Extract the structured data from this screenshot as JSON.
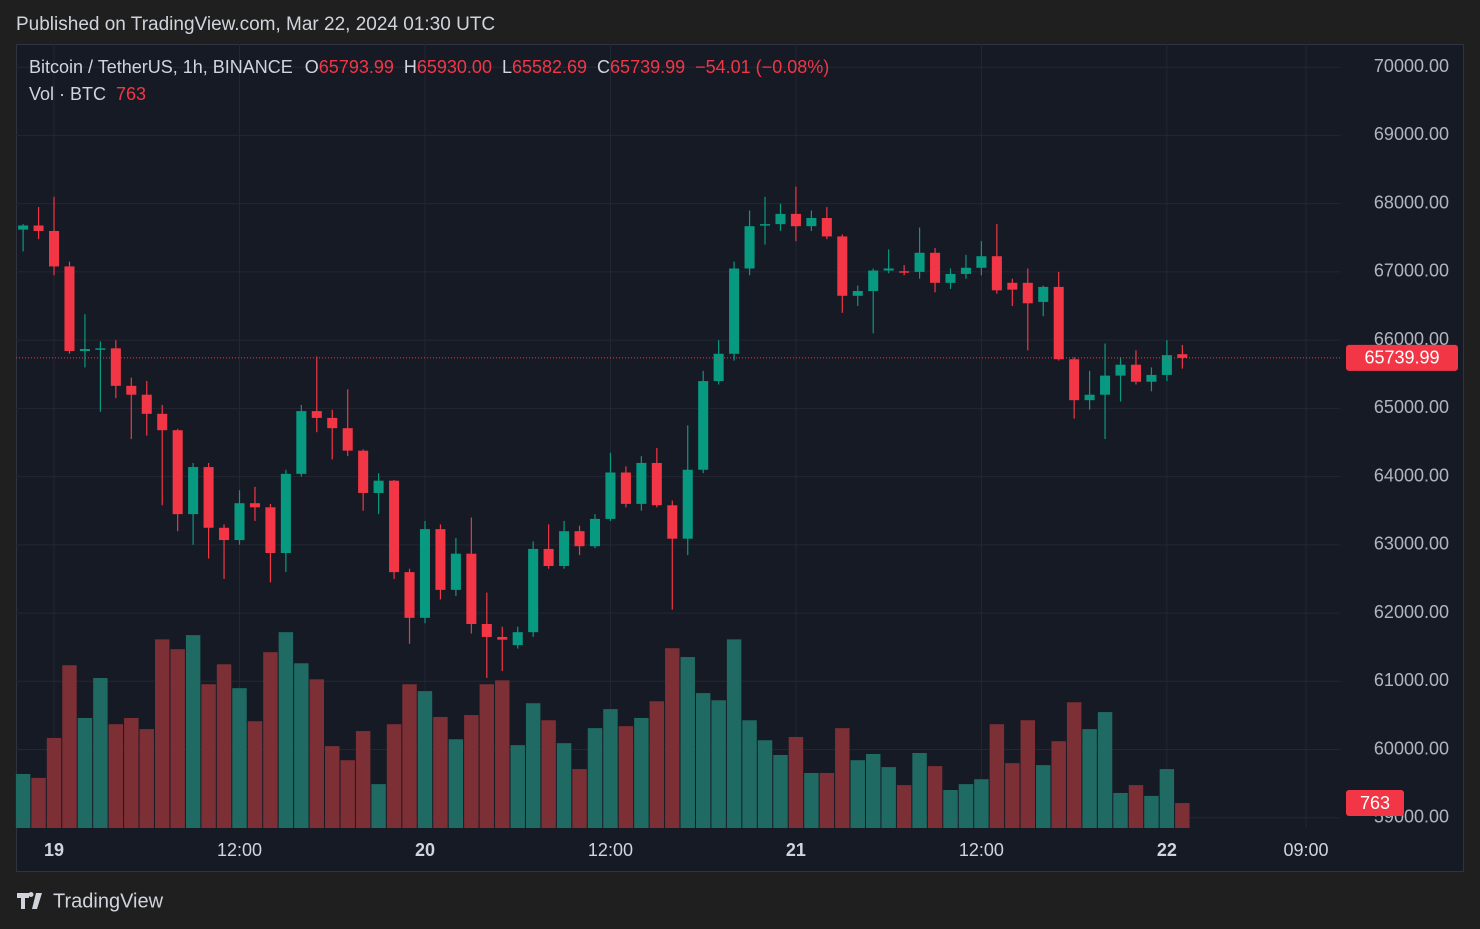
{
  "page": {
    "published": "Published on TradingView.com, Mar 22, 2024 01:30 UTC",
    "brand": "TradingView"
  },
  "chart_data": {
    "type": "candlestick",
    "title": "Bitcoin / TetherUS, 1h, BINANCE",
    "legend": {
      "items": [
        {
          "key": "O",
          "value": "65793.99"
        },
        {
          "key": "H",
          "value": "65930.00"
        },
        {
          "key": "L",
          "value": "65582.69"
        },
        {
          "key": "C",
          "value": "65739.99"
        }
      ],
      "change": "−54.01 (−0.08%)"
    },
    "volume_title": "Vol · BTC",
    "up_color": "#089981",
    "down_color": "#f23645",
    "volume_up_color": "#1f6a62",
    "volume_down_color": "#7c2f35",
    "x": [
      -2,
      -1,
      0,
      1,
      2,
      3,
      4,
      5,
      6,
      7,
      8,
      9,
      10,
      11,
      12,
      13,
      14,
      15,
      16,
      17,
      18,
      19,
      20,
      21,
      22,
      23,
      24,
      25,
      26,
      27,
      28,
      29,
      30,
      31,
      32,
      33,
      34,
      35,
      36,
      37,
      38,
      39,
      40,
      41,
      42,
      43,
      44,
      45,
      46,
      47,
      48,
      49,
      50,
      51,
      52,
      53,
      54,
      55,
      56,
      57,
      58,
      59,
      60,
      61,
      62,
      63,
      64,
      65,
      66,
      67,
      68,
      69,
      70,
      71,
      72,
      73
    ],
    "open": [
      67620,
      67680,
      67600,
      67080,
      65840,
      65860,
      65880,
      65330,
      65200,
      64920,
      64680,
      63450,
      64140,
      63250,
      63070,
      63610,
      63550,
      62880,
      64040,
      64960,
      64860,
      64710,
      64380,
      63760,
      63940,
      62600,
      61930,
      63230,
      62340,
      62870,
      61840,
      61650,
      61530,
      61720,
      62940,
      62690,
      63200,
      62980,
      63380,
      64060,
      63600,
      64200,
      63580,
      63090,
      64100,
      65400,
      65800,
      67050,
      67680,
      67700,
      67850,
      67670,
      67790,
      67520,
      66650,
      66720,
      67020,
      67010,
      67000,
      67280,
      66840,
      66970,
      67060,
      67230,
      66840,
      66840,
      66560,
      66780,
      65720,
      65120,
      65200,
      65480,
      65640,
      65390,
      65490,
      65793.99
    ],
    "high": [
      67700,
      67950,
      68100,
      67150,
      66380,
      65980,
      66000,
      65450,
      65400,
      65050,
      64700,
      64200,
      64200,
      63300,
      63800,
      63850,
      63600,
      64100,
      65050,
      65760,
      64980,
      65280,
      64400,
      64050,
      63950,
      62650,
      63350,
      63300,
      63100,
      63400,
      62300,
      61800,
      61800,
      63050,
      63300,
      63350,
      63280,
      63450,
      64350,
      64150,
      64300,
      64420,
      63650,
      64750,
      65550,
      66000,
      67150,
      67900,
      68100,
      68000,
      68250,
      67900,
      67950,
      67550,
      66800,
      67050,
      67330,
      67100,
      67650,
      67350,
      67050,
      67250,
      67450,
      67700,
      66900,
      67050,
      66800,
      67000,
      65750,
      65550,
      65950,
      65750,
      65850,
      65600,
      66000,
      65930
    ],
    "low": [
      67300,
      67480,
      66950,
      65800,
      65600,
      64950,
      65150,
      64550,
      64600,
      63580,
      63200,
      63000,
      62800,
      62500,
      63000,
      63350,
      62450,
      62600,
      64000,
      64650,
      64250,
      64300,
      63500,
      63450,
      62500,
      61550,
      61850,
      62200,
      62250,
      61700,
      61050,
      61150,
      61480,
      61650,
      62650,
      62650,
      62850,
      62950,
      63350,
      63550,
      63500,
      63550,
      62050,
      62850,
      64050,
      65350,
      65700,
      66950,
      67400,
      67600,
      67450,
      67600,
      67480,
      66400,
      66500,
      66100,
      66980,
      66950,
      66900,
      66700,
      66750,
      66900,
      66950,
      66680,
      66500,
      65850,
      66350,
      65700,
      64850,
      64980,
      64550,
      65100,
      65350,
      65250,
      65400,
      65582.69
    ],
    "close": [
      67680,
      67600,
      67080,
      65840,
      65870,
      65880,
      65330,
      65200,
      64920,
      64680,
      63450,
      64140,
      63250,
      63070,
      63610,
      63550,
      62880,
      64040,
      64960,
      64860,
      64710,
      64380,
      63760,
      63940,
      62600,
      61930,
      63230,
      62340,
      62870,
      61840,
      61650,
      61610,
      61720,
      62940,
      62690,
      63200,
      62980,
      63380,
      64060,
      63600,
      64200,
      63580,
      63090,
      64100,
      65400,
      65800,
      67050,
      67670,
      67700,
      67850,
      67670,
      67790,
      67520,
      66650,
      66720,
      67020,
      67050,
      67000,
      67280,
      66840,
      66970,
      67060,
      67230,
      66730,
      66740,
      66540,
      66780,
      65720,
      65120,
      65200,
      65480,
      65640,
      65390,
      65490,
      65780,
      65739.99
    ],
    "volume": [
      1650,
      1530,
      2750,
      4970,
      3360,
      4580,
      3170,
      3360,
      3020,
      5760,
      5460,
      5890,
      4390,
      5000,
      4270,
      3260,
      5370,
      5980,
      5030,
      4540,
      2500,
      2070,
      2960,
      1340,
      3170,
      4390,
      4180,
      3390,
      2710,
      3450,
      4390,
      4510,
      2530,
      3810,
      3290,
      2590,
      1800,
      3050,
      3630,
      3110,
      3360,
      3870,
      5490,
      5220,
      4120,
      3900,
      5760,
      3290,
      2680,
      2230,
      2780,
      1680,
      1680,
      3050,
      2070,
      2260,
      1860,
      1310,
      2290,
      1890,
      1160,
      1340,
      1490,
      3170,
      1980,
      3290,
      1920,
      2650,
      3840,
      3020,
      3540,
      1070,
      1310,
      980,
      1800,
      763
    ],
    "xlim": [
      -2.46,
      83.2
    ],
    "xticks": [
      {
        "value": 0,
        "label": "19"
      },
      {
        "value": 12,
        "label": "12:00"
      },
      {
        "value": 24,
        "label": "20"
      },
      {
        "value": 36,
        "label": "12:00"
      },
      {
        "value": 48,
        "label": "21"
      },
      {
        "value": 60,
        "label": "12:00"
      },
      {
        "value": 72,
        "label": "22"
      },
      {
        "value": 81,
        "label": "09:00"
      }
    ],
    "ylim": [
      58850,
      70340
    ],
    "yticks": [
      {
        "value": 59000,
        "label": "59000.00"
      },
      {
        "value": 60000,
        "label": "60000.00"
      },
      {
        "value": 61000,
        "label": "61000.00"
      },
      {
        "value": 62000,
        "label": "62000.00"
      },
      {
        "value": 63000,
        "label": "63000.00"
      },
      {
        "value": 64000,
        "label": "64000.00"
      },
      {
        "value": 65000,
        "label": "65000.00"
      },
      {
        "value": 66000,
        "label": "66000.00"
      },
      {
        "value": 67000,
        "label": "67000.00"
      },
      {
        "value": 68000,
        "label": "68000.00"
      },
      {
        "value": 69000,
        "label": "69000.00"
      },
      {
        "value": 70000,
        "label": "70000.00"
      }
    ],
    "vlim": [
      0,
      8000
    ],
    "grid": true
  }
}
